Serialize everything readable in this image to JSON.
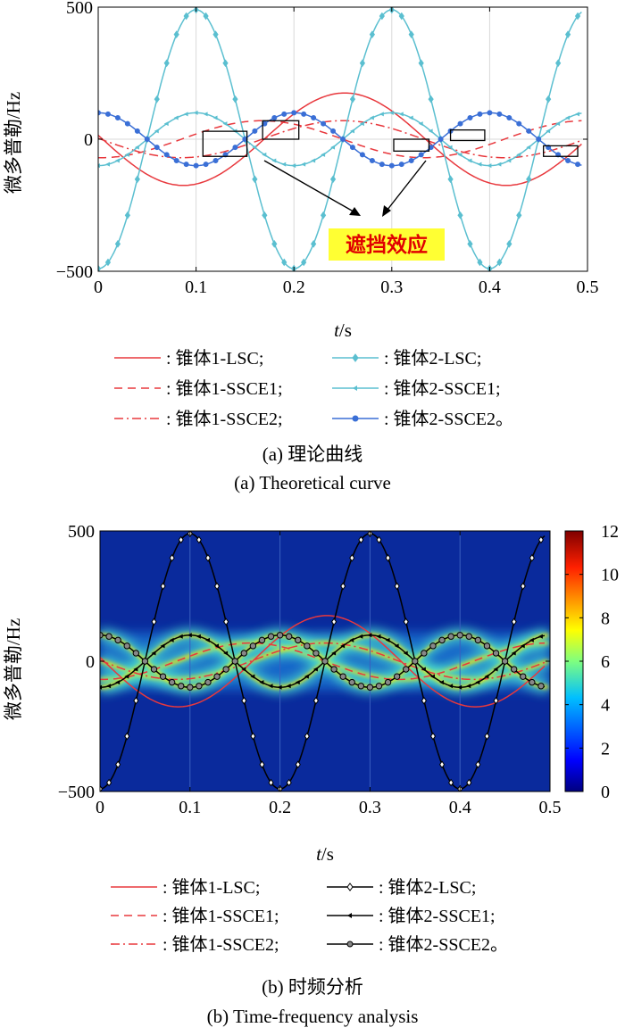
{
  "chart_data": [
    {
      "panel": "a",
      "type": "line",
      "xlabel_italic": "t",
      "xlabel_rest": "/s",
      "ylabel": "微多普勒/Hz",
      "xlim": [
        0,
        0.5
      ],
      "ylim": [
        -500,
        500
      ],
      "xticks": [
        "0",
        "0.1",
        "0.2",
        "0.3",
        "0.4",
        "0.5"
      ],
      "yticks": [
        "500",
        "0",
        "−500"
      ],
      "grid": "vertical",
      "annotation": "遮挡效应",
      "series": [
        {
          "name": "锥体1-LSC",
          "color": "#e8383d",
          "style": "solid",
          "marker": "none",
          "amplitude": 175,
          "period": 0.33,
          "phase": 0.252,
          "shape": "cos"
        },
        {
          "name": "锥体1-SSCE1",
          "color": "#e8383d",
          "style": "dashed",
          "marker": "none",
          "amplitude": 70,
          "period": 0.33,
          "phase": 0.085,
          "shape": "sin"
        },
        {
          "name": "锥体1-SSCE2",
          "color": "#e8383d",
          "style": "dashdot",
          "marker": "none",
          "amplitude": 70,
          "period": 0.33,
          "phase": 0.25,
          "shape": "cos"
        },
        {
          "name": "锥体2-LSC",
          "color": "#5bbfd0",
          "style": "solid",
          "marker": "diamond",
          "amplitude": 490,
          "period": 0.2,
          "phase": 0.1,
          "shape": "cos"
        },
        {
          "name": "锥体2-SSCE1",
          "color": "#5bbfd0",
          "style": "solid",
          "marker": "triangle",
          "amplitude": 100,
          "period": 0.2,
          "phase": 0.0,
          "shape": "cos_neg"
        },
        {
          "name": "锥体2-SSCE2",
          "color": "#3a6fd6",
          "style": "solid",
          "marker": "dot",
          "amplitude": 100,
          "period": 0.2,
          "phase": 0.0,
          "shape": "cos"
        }
      ],
      "legend": [
        "锥体1-LSC;",
        "锥体2-LSC;",
        "锥体1-SSCE1;",
        "锥体2-SSCE1;",
        "锥体1-SSCE2;",
        "锥体2-SSCE2。"
      ]
    },
    {
      "panel": "b",
      "type": "heatmap",
      "xlabel_italic": "t",
      "xlabel_rest": "/s",
      "ylabel": "微多普勒/Hz",
      "xlim": [
        0,
        0.5
      ],
      "ylim": [
        -500,
        500
      ],
      "xticks": [
        "0",
        "0.1",
        "0.2",
        "0.3",
        "0.4",
        "0.5"
      ],
      "yticks": [
        "500",
        "0",
        "−500"
      ],
      "colorbar_range": [
        0,
        12
      ],
      "colorbar_ticks": [
        "12",
        "10",
        "8",
        "6",
        "4",
        "2",
        "0"
      ],
      "series": [
        {
          "name": "锥体1-LSC",
          "color": "#e8383d",
          "style": "solid",
          "marker": "none"
        },
        {
          "name": "锥体1-SSCE1",
          "color": "#e8383d",
          "style": "dashed",
          "marker": "none"
        },
        {
          "name": "锥体1-SSCE2",
          "color": "#e8383d",
          "style": "dashdot",
          "marker": "none"
        },
        {
          "name": "锥体2-LSC",
          "color": "#000000",
          "style": "solid",
          "marker": "diamond"
        },
        {
          "name": "锥体2-SSCE1",
          "color": "#000000",
          "style": "solid",
          "marker": "triangle"
        },
        {
          "name": "锥体2-SSCE2",
          "color": "#000000",
          "style": "solid",
          "marker": "dot"
        }
      ],
      "legend": [
        "锥体1-LSC;",
        "锥体2-LSC;",
        "锥体1-SSCE1;",
        "锥体2-SSCE1;",
        "锥体1-SSCE2;",
        "锥体2-SSCE2。"
      ]
    }
  ],
  "captions": {
    "a_cn": "(a) 理论曲线",
    "a_en": "(a) Theoretical curve",
    "b_cn": "(b) 时频分析",
    "b_en": "(b) Time-frequency analysis"
  }
}
